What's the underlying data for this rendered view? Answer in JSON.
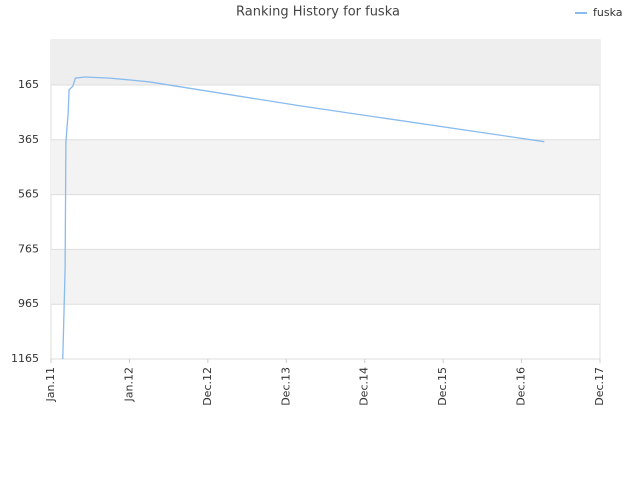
{
  "chart_data": {
    "type": "line",
    "title": "Ranking History for fuska",
    "x": [
      0.15,
      0.17,
      0.18,
      0.19,
      0.22,
      0.23,
      0.28,
      0.31,
      0.43,
      0.75,
      1.01,
      1.26,
      3.17,
      6.29
    ],
    "series": [
      {
        "name": "fuska",
        "color": "#88bbee",
        "values": [
          1165,
          947,
          830,
          372,
          263,
          183,
          169,
          140,
          136,
          140,
          147,
          154,
          241,
          372
        ]
      }
    ],
    "xlim": [
      0,
      7
    ],
    "xticks": [
      {
        "value": 0,
        "label": "Jan.11"
      },
      {
        "value": 1,
        "label": "Jan.12"
      },
      {
        "value": 2,
        "label": "Dec.12"
      },
      {
        "value": 3,
        "label": "Dec.13"
      },
      {
        "value": 4,
        "label": "Dec.14"
      },
      {
        "value": 5,
        "label": "Dec.15"
      },
      {
        "value": 6,
        "label": "Dec.16"
      },
      {
        "value": 7,
        "label": "Dec.17"
      }
    ],
    "ylim": [
      1165,
      1
    ],
    "yticks": [
      165,
      365,
      565,
      765,
      965,
      1165
    ],
    "grid": true,
    "legend": "top-right"
  }
}
